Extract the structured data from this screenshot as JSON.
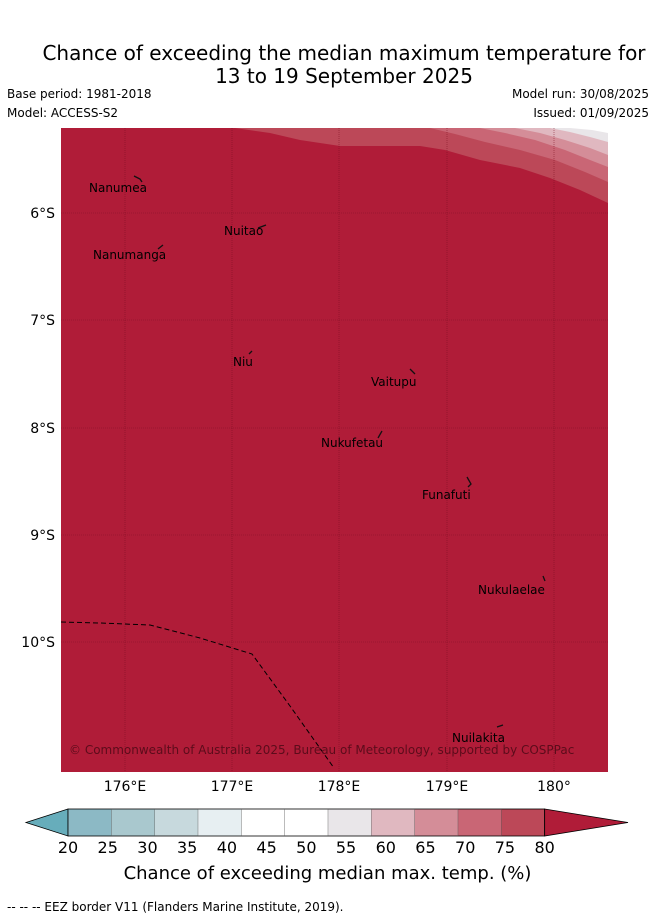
{
  "title_line1": "Chance of exceeding the median maximum temperature for",
  "title_line2": "13 to 19 September 2025",
  "base_period": "Base period: 1981-2018",
  "model": "Model: ACCESS-S2",
  "model_run": "Model run: 30/08/2025",
  "issued": "Issued: 01/09/2025",
  "colors": {
    "dominant": "#b01c38",
    "ocean_fill": "#b01c38",
    "bins": [
      "#67adbb",
      "#8cb9c5",
      "#a9c8ce",
      "#c7d9dd",
      "#e7eff2",
      "#ffffff",
      "#ffffff",
      "#e9e6e9",
      "#e0b8c0",
      "#d48d98",
      "#c96675",
      "#bc4858",
      "#b01c38"
    ]
  },
  "lat_labels": [
    "6°S",
    "7°S",
    "8°S",
    "9°S",
    "10°S"
  ],
  "lon_labels": [
    "176°E",
    "177°E",
    "178°E",
    "179°E",
    "180°"
  ],
  "places": [
    "Nanumea",
    "Nuitao",
    "Nanumanga",
    "Niu",
    "Vaitupu",
    "Nukufetau",
    "Funafuti",
    "Nukulaelae",
    "Nuilakita"
  ],
  "copyright": "© Commonwealth of Australia 2025, Bureau of Meteorology, supported by COSPPac",
  "colorbar": {
    "ticks": [
      "20",
      "25",
      "30",
      "35",
      "40",
      "45",
      "50",
      "55",
      "60",
      "65",
      "70",
      "75",
      "80"
    ],
    "title": "Chance of exceeding median max. temp. (%)"
  },
  "footer": "--  --  -- EEZ border V11 (Flanders Marine Institute, 2019)."
}
